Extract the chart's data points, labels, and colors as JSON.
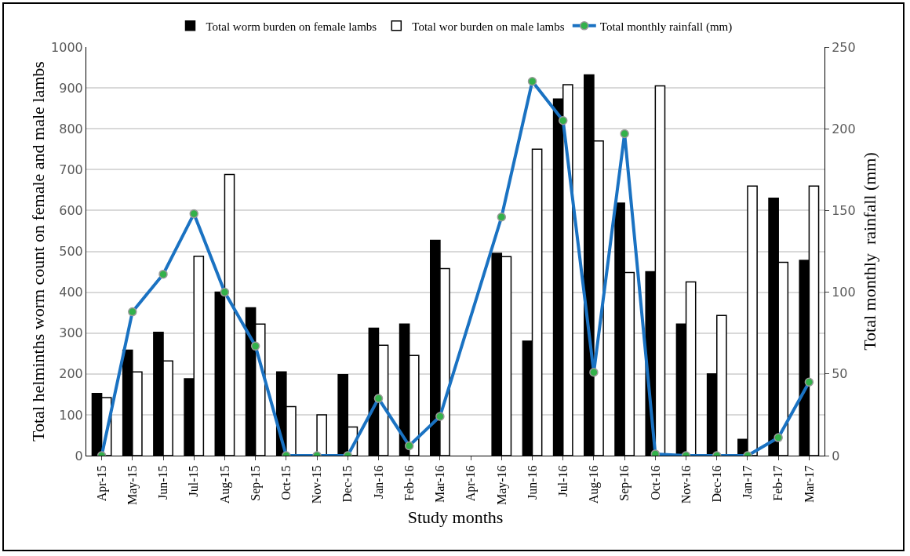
{
  "chart_data": {
    "type": "bar",
    "xlabel": "Study months",
    "ylabel": "Total helminths worm count on female and male lambs",
    "y2label": "Total monthly  rainfall (mm)",
    "categories": [
      "Apr-15",
      "May-15",
      "Jun-15",
      "Jul-15",
      "Aug-15",
      "Sep-15",
      "Oct-15",
      "Nov-15",
      "Dec-15",
      "Jan-16",
      "Feb-16",
      "Mar-16",
      "Apr-16",
      "May-16",
      "Jun-16",
      "Jul-16",
      "Aug-16",
      "Sep-16",
      "Oct-16",
      "Nov-16",
      "Dec-16",
      "Jan-17",
      "Feb-17",
      "Mar-17"
    ],
    "series": [
      {
        "name": "Total worm burden on female lambs",
        "color": "#000000",
        "values": [
          152,
          258,
          302,
          188,
          400,
          362,
          205,
          null,
          198,
          312,
          322,
          527,
          null,
          495,
          280,
          873,
          932,
          618,
          450,
          322,
          200,
          40,
          630,
          478
        ]
      },
      {
        "name": "Total wor burden on male lambs",
        "color": "#ffffff",
        "values": [
          142,
          205,
          232,
          488,
          688,
          322,
          120,
          100,
          70,
          270,
          245,
          458,
          null,
          487,
          750,
          908,
          770,
          448,
          905,
          425,
          343,
          660,
          473,
          660
        ]
      },
      {
        "name": "Total monthly rainfall (mm)",
        "type": "line",
        "axis": "y2",
        "color": "#1a72c2",
        "marker": "circle",
        "values": [
          0,
          88,
          111,
          148,
          100,
          67,
          0,
          0,
          0,
          35,
          6,
          24,
          null,
          146,
          229,
          205,
          51,
          197,
          1,
          0,
          0,
          0,
          11,
          45
        ]
      }
    ],
    "ylim": [
      0,
      1000
    ],
    "yticks": [
      0,
      100,
      200,
      300,
      400,
      500,
      600,
      700,
      800,
      900,
      1000
    ],
    "y2lim": [
      0,
      250
    ],
    "y2ticks": [
      0,
      50,
      100,
      150,
      200,
      250
    ],
    "grid": "y",
    "legend": "top"
  }
}
